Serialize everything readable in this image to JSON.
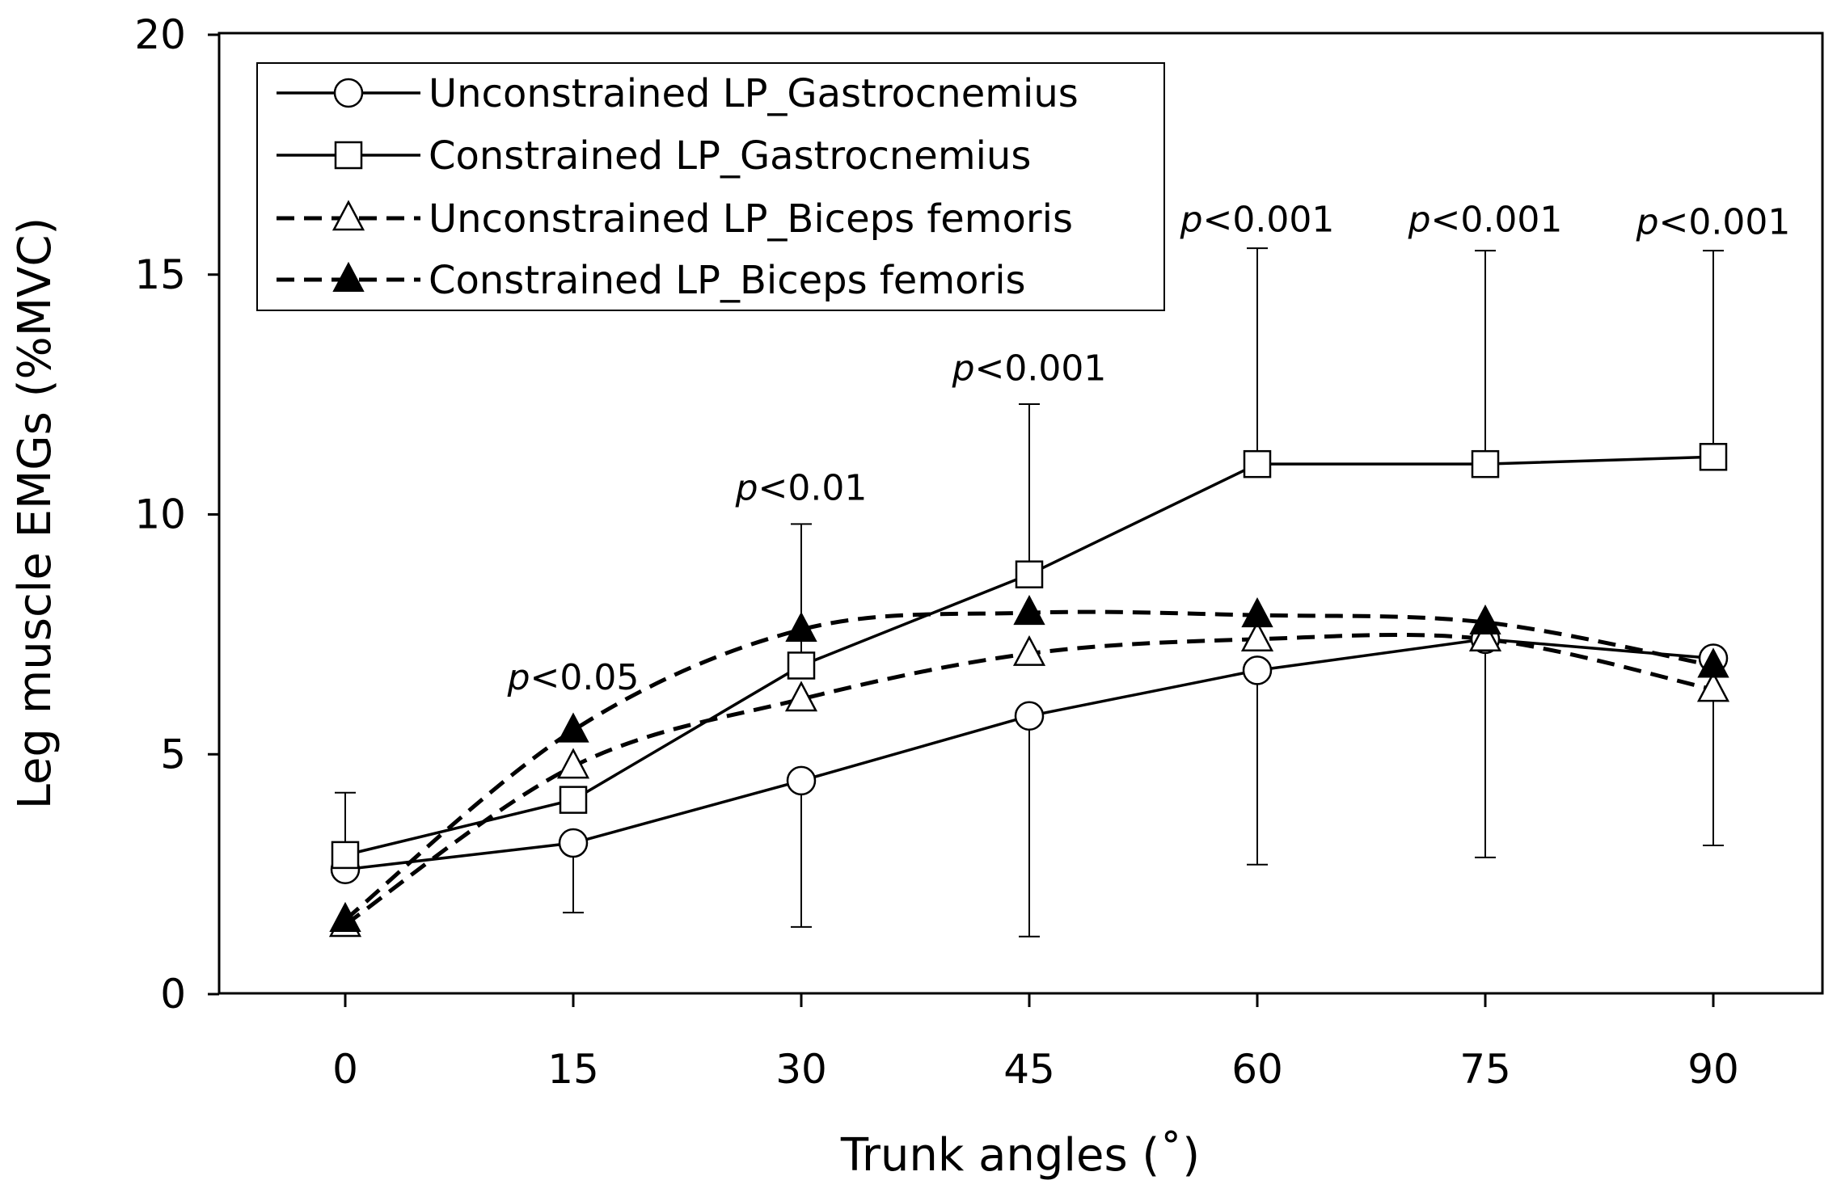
{
  "chart_data": {
    "type": "line",
    "title": "",
    "xlabel": "Trunk angles (˚)",
    "ylabel": "Leg muscle EMGs (%MVC)",
    "x": [
      0,
      15,
      30,
      45,
      60,
      75,
      90
    ],
    "x_tick_labels": [
      "0",
      "15",
      "30",
      "45",
      "60",
      "75",
      "90"
    ],
    "ylim": [
      0,
      20
    ],
    "y_ticks": [
      0,
      5,
      10,
      15,
      20
    ],
    "y_tick_labels": [
      "0",
      "5",
      "10",
      "15",
      "20"
    ],
    "grid": false,
    "legend_position": "top-left",
    "series": [
      {
        "name": "Unconstrained LP_Gastrocnemius",
        "values": [
          2.6,
          3.15,
          4.45,
          5.8,
          6.75,
          7.4,
          7.0
        ],
        "line_style": "solid",
        "marker": "circle-open",
        "error_lower": [
          null,
          1.7,
          1.4,
          1.2,
          2.7,
          2.85,
          3.1
        ],
        "error_upper": [
          null,
          null,
          null,
          null,
          null,
          null,
          null
        ]
      },
      {
        "name": "Constrained LP_Gastrocnemius",
        "values": [
          2.9,
          4.05,
          6.85,
          8.75,
          11.05,
          11.05,
          11.2
        ],
        "line_style": "solid",
        "marker": "square-open",
        "error_lower": [
          null,
          null,
          null,
          null,
          null,
          null,
          null
        ],
        "error_upper": [
          4.2,
          null,
          9.8,
          12.3,
          15.55,
          15.5,
          15.5
        ]
      },
      {
        "name": "Unconstrained LP_Biceps femoris",
        "values": [
          1.45,
          4.75,
          6.15,
          7.1,
          7.4,
          7.4,
          6.35
        ],
        "line_style": "dashed",
        "marker": "triangle-open",
        "error_lower": [
          null,
          null,
          null,
          null,
          null,
          null,
          null
        ],
        "error_upper": [
          null,
          null,
          null,
          null,
          null,
          null,
          null
        ]
      },
      {
        "name": "Constrained LP_Biceps femoris",
        "values": [
          1.55,
          5.5,
          7.6,
          7.95,
          7.9,
          7.75,
          6.85
        ],
        "line_style": "dashed",
        "marker": "triangle-filled",
        "error_lower": [
          null,
          null,
          null,
          null,
          null,
          null,
          null
        ],
        "error_upper": [
          null,
          null,
          null,
          null,
          null,
          null,
          null
        ]
      }
    ],
    "annotations": [
      {
        "x": 15,
        "y": 6.35,
        "prefix": "p",
        "text": "<0.05"
      },
      {
        "x": 30,
        "y": 10.3,
        "prefix": "p",
        "text": "<0.01"
      },
      {
        "x": 45,
        "y": 12.8,
        "prefix": "p",
        "text": "<0.001"
      },
      {
        "x": 60,
        "y": 15.9,
        "prefix": "p",
        "text": "<0.001"
      },
      {
        "x": 75,
        "y": 15.9,
        "prefix": "p",
        "text": "<0.001"
      },
      {
        "x": 90,
        "y": 15.85,
        "prefix": "p",
        "text": "<0.001"
      }
    ]
  }
}
